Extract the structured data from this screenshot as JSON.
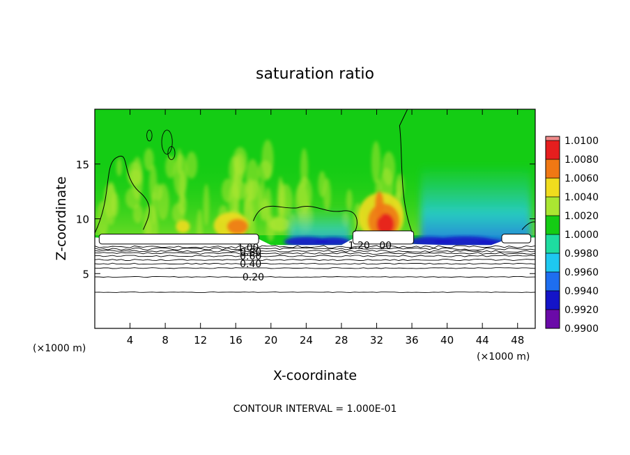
{
  "chart_data": {
    "type": "heatmap",
    "title": "saturation ratio",
    "xlabel": "X-coordinate",
    "ylabel": "Z-coordinate",
    "x_unit_left": "(×1000 m)",
    "x_unit_right": "(×1000 m)",
    "footer": "CONTOUR INTERVAL = 1.000E-01",
    "xlim": [
      0,
      50
    ],
    "ylim": [
      0,
      20
    ],
    "x_ticks": [
      4,
      8,
      12,
      16,
      20,
      24,
      28,
      32,
      36,
      40,
      44,
      48
    ],
    "y_ticks": [
      5,
      10,
      15
    ],
    "colorbar": {
      "levels": [
        "0.9900",
        "0.9920",
        "0.9940",
        "0.9960",
        "0.9980",
        "1.0000",
        "1.0020",
        "1.0040",
        "1.0060",
        "1.0080",
        "1.0100"
      ],
      "colors": [
        "#6a0aa8",
        "#1414c8",
        "#1e6ef0",
        "#1ec8f0",
        "#1edca0",
        "#14cc14",
        "#aae632",
        "#f0dc1e",
        "#f07814",
        "#e61e1e",
        "#f08a8a"
      ]
    },
    "contour_labels": [
      {
        "text": "0.20",
        "x": 18.0,
        "z": 4.7
      },
      {
        "text": "0.40",
        "x": 17.7,
        "z": 5.9
      },
      {
        "text": "0.60",
        "x": 17.7,
        "z": 6.6
      },
      {
        "text": "0.80",
        "x": 17.7,
        "z": 7.0
      },
      {
        "text": "1.00",
        "x": 17.4,
        "z": 7.4
      },
      {
        "text": "1.20",
        "x": 30.0,
        "z": 7.6
      },
      {
        "text": "00",
        "x": 33.0,
        "z": 7.6
      }
    ]
  }
}
